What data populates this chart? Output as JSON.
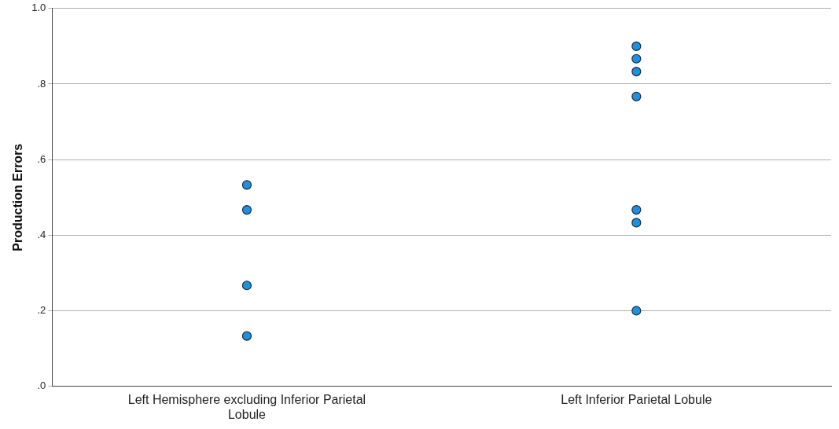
{
  "chart_data": {
    "type": "scatter",
    "ylabel": "Production Errors",
    "categories": [
      "Left Hemisphere excluding Inferior Parietal Lobule",
      "Left Inferior Parietal Lobule"
    ],
    "series": [
      {
        "color": "#1e90e0",
        "x": [
          "Left Hemisphere excluding Inferior Parietal Lobule",
          "Left Hemisphere excluding Inferior Parietal Lobule",
          "Left Hemisphere excluding Inferior Parietal Lobule",
          "Left Hemisphere excluding Inferior Parietal Lobule",
          "Left Inferior Parietal Lobule",
          "Left Inferior Parietal Lobule",
          "Left Inferior Parietal Lobule",
          "Left Inferior Parietal Lobule",
          "Left Inferior Parietal Lobule",
          "Left Inferior Parietal Lobule",
          "Left Inferior Parietal Lobule"
        ],
        "values": [
          0.533,
          0.467,
          0.267,
          0.133,
          0.9,
          0.867,
          0.833,
          0.767,
          0.467,
          0.433,
          0.2
        ]
      }
    ],
    "ylim": [
      0,
      1.0
    ],
    "yticks": [
      {
        "value": 0,
        "label": ".0"
      },
      {
        "value": 0.2,
        "label": ".2"
      },
      {
        "value": 0.4,
        "label": ".4"
      },
      {
        "value": 0.6,
        "label": ".6"
      },
      {
        "value": 0.8,
        "label": ".8"
      },
      {
        "value": 1.0,
        "label": "1.0"
      }
    ],
    "grid": "y",
    "marker": "circle",
    "legend": false
  }
}
